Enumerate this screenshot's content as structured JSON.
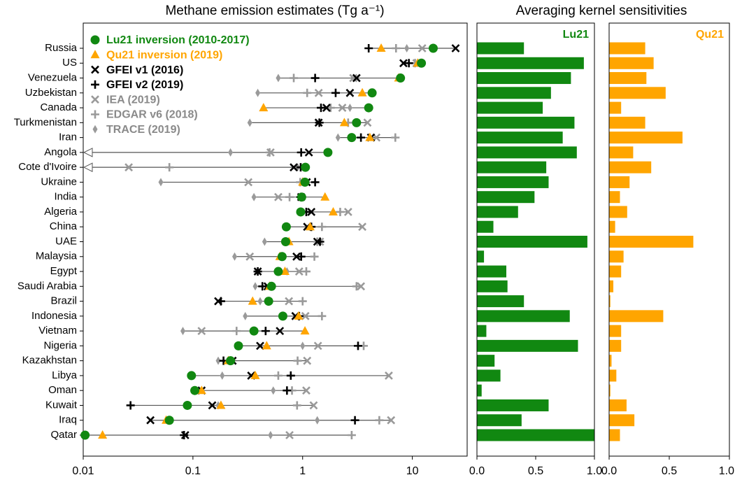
{
  "chart_data": [
    {
      "type": "dot-range",
      "title": "Methane emission estimates (Tg a⁻¹)",
      "log_x": true,
      "xlim": [
        0.01,
        31.6
      ],
      "xticks": [
        0.01,
        0.1,
        1,
        10
      ],
      "off_scale_marker": "left-arrow",
      "categories": [
        "Russia",
        "US",
        "Venezuela",
        "Uzbekistan",
        "Canada",
        "Turkmenistan",
        "Iran",
        "Angola",
        "Cote d'Ivoire",
        "Ukraine",
        "India",
        "Algeria",
        "China",
        "UAE",
        "Malaysia",
        "Egypt",
        "Saudi Arabia",
        "Brazil",
        "Indonesia",
        "Vietnam",
        "Nigeria",
        "Kazakhstan",
        "Libya",
        "Oman",
        "Kuwait",
        "Iraq",
        "Qatar"
      ],
      "series": [
        {
          "name": "Lu21 inversion (2010-2017)",
          "color": "#118811",
          "marker": "circle",
          "values": [
            15.5,
            12.1,
            7.8,
            4.3,
            4.0,
            3.1,
            2.8,
            1.7,
            1.06,
            1.05,
            0.98,
            0.96,
            0.71,
            0.7,
            0.65,
            0.6,
            0.52,
            0.49,
            0.66,
            0.36,
            0.26,
            0.22,
            0.097,
            0.104,
            0.089,
            0.061,
            0.0104
          ]
        },
        {
          "name": "Qu21 inversion (2019)",
          "color": "#ffa500",
          "marker": "triangle",
          "values": [
            5.2,
            11.2,
            7.5,
            3.5,
            0.44,
            2.4,
            4.1,
            0.005,
            0.005,
            1.0,
            1.6,
            1.9,
            1.17,
            0.75,
            0.62,
            0.69,
            0.5,
            0.35,
            0.92,
            1.05,
            0.47,
            0.21,
            0.37,
            0.12,
            0.18,
            0.057,
            0.015
          ]
        },
        {
          "name": "GFEI v1 (2016)",
          "color": "#000000",
          "marker": "x",
          "values": [
            24.8,
            8.3,
            3.1,
            2.7,
            1.65,
            1.4,
            4.2,
            1.14,
            0.83,
            1.09,
            0.97,
            1.2,
            1.1,
            1.36,
            0.88,
            0.39,
            0.48,
            0.17,
            0.86,
            0.62,
            0.41,
            0.23,
            0.34,
            0.12,
            0.15,
            0.041,
            0.085
          ]
        },
        {
          "name": "GFEI v2 (2019)",
          "color": "#000000",
          "marker": "plus",
          "values": [
            4.0,
            9.3,
            1.3,
            2.0,
            1.47,
            1.42,
            3.4,
            0.97,
            0.96,
            1.3,
            0.96,
            1.08,
            1.2,
            1.44,
            0.97,
            0.39,
            0.43,
            0.18,
            0.93,
            0.46,
            3.2,
            0.19,
            0.78,
            0.72,
            0.027,
            3.0,
            0.083
          ]
        },
        {
          "name": "IEA (2019)",
          "color": "#9a9a9a",
          "marker": "x",
          "values": [
            12.3,
            10.9,
            2.9,
            1.4,
            2.3,
            3.9,
            4.7,
            0.51,
            0.026,
            0.32,
            0.6,
            2.6,
            3.5,
            1.44,
            0.33,
            0.93,
            3.4,
            0.75,
            1.06,
            0.12,
            1.38,
            1.1,
            6.1,
            1.08,
            1.26,
            6.4,
            0.76
          ]
        },
        {
          "name": "EDGAR v6 (2018)",
          "color": "#9a9a9a",
          "marker": "plus",
          "values": [
            7.1,
            10.6,
            0.83,
            1.1,
            1.8,
            2.6,
            7.0,
            0.5,
            0.061,
            0.95,
            0.76,
            2.2,
            1.5,
            1.36,
            1.28,
            1.08,
            3.1,
            1.0,
            1.5,
            0.25,
            3.6,
            0.9,
            0.6,
            0.8,
            0.89,
            5.0,
            2.8
          ]
        },
        {
          "name": "TRACE (2019)",
          "color": "#9a9a9a",
          "marker": "diamond",
          "values": [
            8.9,
            11.1,
            0.6,
            0.39,
            2.7,
            0.33,
            2.1,
            0.22,
            0.9,
            0.051,
            0.36,
            0.93,
            0.68,
            0.45,
            0.24,
            0.72,
            0.37,
            0.41,
            0.3,
            0.081,
            1.0,
            0.17,
            0.185,
            0.54,
            0.17,
            1.36,
            0.51
          ]
        }
      ]
    },
    {
      "type": "hbar",
      "title": "Averaging kernel sensitivities",
      "label": "Lu21",
      "color": "#118811",
      "xlim": [
        0,
        1
      ],
      "xticks": [
        {
          "value": 0,
          "label": "0.0"
        },
        {
          "value": 0.5,
          "label": "0.5"
        },
        {
          "value": 1,
          "label": "1.0"
        }
      ],
      "values": [
        0.4,
        0.91,
        0.8,
        0.63,
        0.56,
        0.83,
        0.73,
        0.85,
        0.59,
        0.61,
        0.49,
        0.35,
        0.14,
        0.94,
        0.06,
        0.25,
        0.26,
        0.4,
        0.79,
        0.08,
        0.86,
        0.15,
        0.2,
        0.04,
        0.61,
        0.38,
        1.0
      ]
    },
    {
      "type": "hbar",
      "label": "Qu21",
      "color": "#ffa500",
      "xlim": [
        0,
        1
      ],
      "xticks": [
        {
          "value": 0,
          "label": "0.0"
        },
        {
          "value": 0.5,
          "label": "0.5"
        },
        {
          "value": 1,
          "label": "1.0"
        }
      ],
      "values": [
        0.3,
        0.37,
        0.31,
        0.47,
        0.1,
        0.3,
        0.61,
        0.2,
        0.35,
        0.17,
        0.09,
        0.15,
        0.05,
        0.7,
        0.12,
        0.1,
        0.035,
        0.01,
        0.45,
        0.1,
        0.1,
        0.02,
        0.06,
        0.01,
        0.145,
        0.21,
        0.09
      ]
    }
  ]
}
